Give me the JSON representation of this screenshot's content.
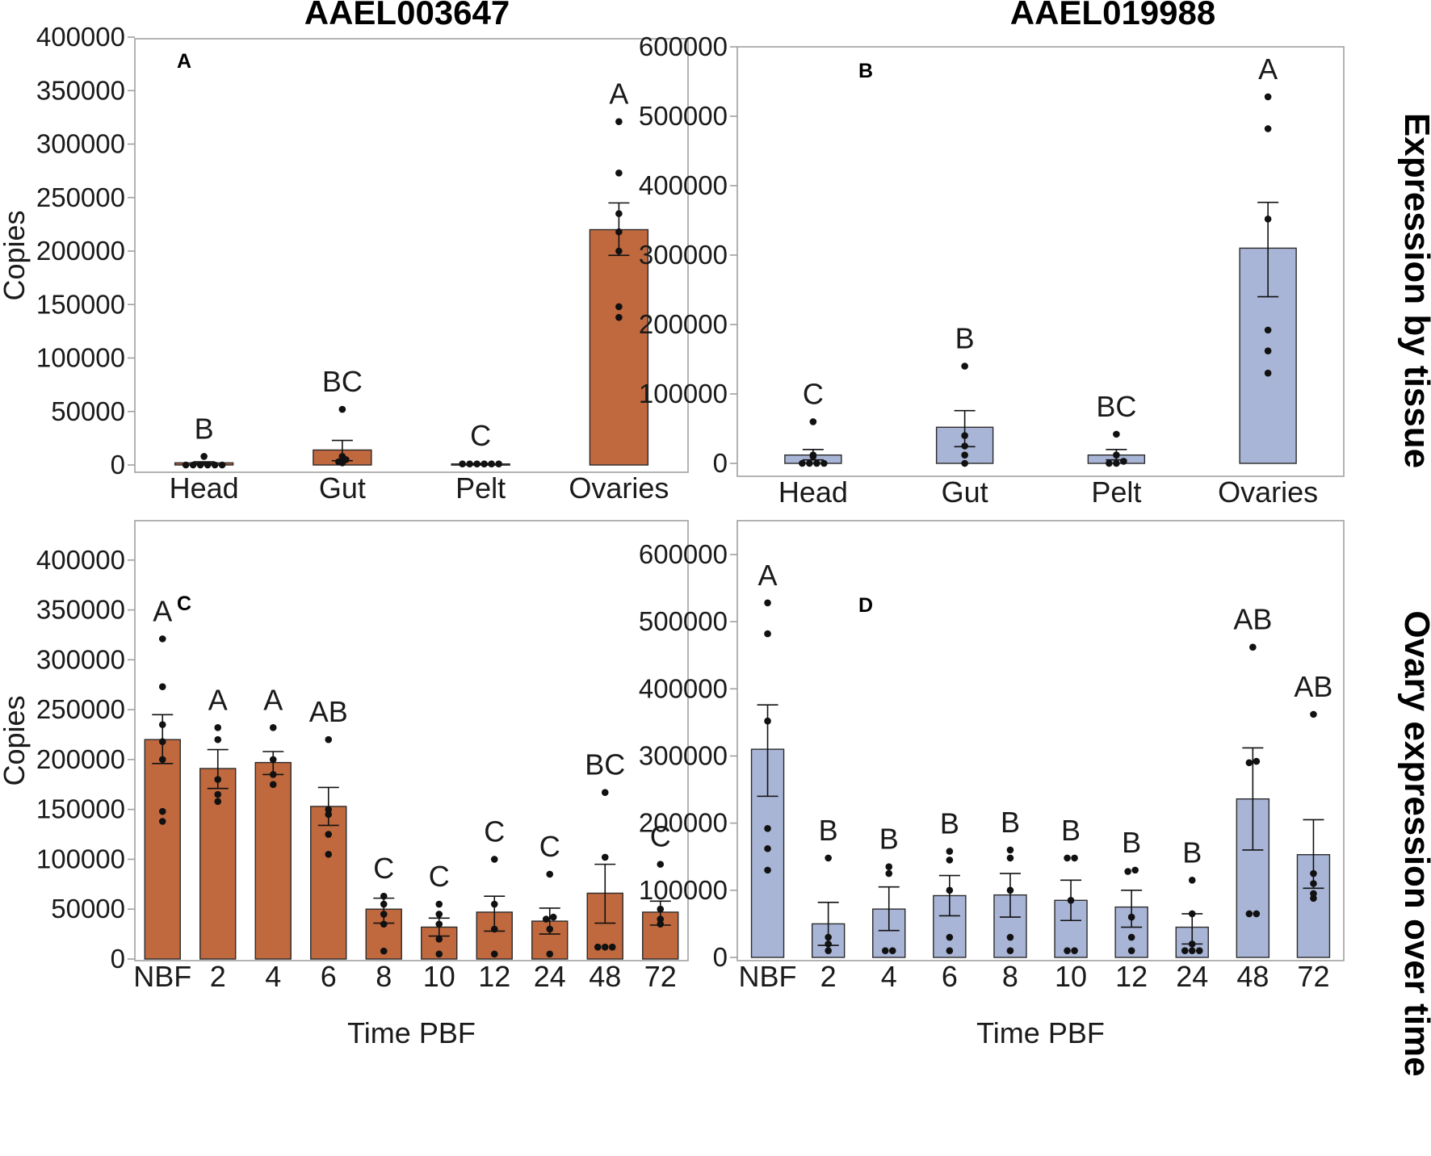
{
  "figure": {
    "column_titles": [
      "AAEL003647",
      "AAEL019988"
    ],
    "row_labels": [
      "Expression by tissue",
      "Ovary expression over time"
    ]
  },
  "colors": {
    "orange": "#c0683e",
    "blue": "#a9b5d6",
    "axis": "#a0a0a0",
    "ink": "#111111"
  },
  "chart_data": [
    {
      "id": "A",
      "panel_label": "A",
      "type": "bar",
      "color": "orange",
      "title": "AAEL003647",
      "xlabel": "",
      "ylabel": "Copies",
      "ylim": [
        0,
        400000
      ],
      "yticks": [
        0,
        50000,
        100000,
        150000,
        200000,
        250000,
        300000,
        350000,
        400000
      ],
      "categories": [
        "Head",
        "Gut",
        "Pelt",
        "Ovaries"
      ],
      "values": [
        2000,
        14000,
        1000,
        220000
      ],
      "errors": [
        [
          1000,
          3000
        ],
        [
          4000,
          23000
        ],
        [
          500,
          1500
        ],
        [
          196000,
          245000
        ]
      ],
      "letters": [
        "B",
        "BC",
        "C",
        "A"
      ],
      "points": [
        [
          0,
          0,
          0,
          0,
          0,
          0,
          8000
        ],
        [
          2000,
          3000,
          5000,
          8000,
          52000
        ],
        [
          1000,
          1000,
          1000,
          1000,
          1000,
          1000
        ],
        [
          138000,
          148000,
          200000,
          218000,
          235000,
          273000,
          321000
        ]
      ]
    },
    {
      "id": "B",
      "panel_label": "B",
      "type": "bar",
      "color": "blue",
      "title": "AAEL019988",
      "xlabel": "",
      "ylabel": "",
      "ylim": [
        0,
        600000
      ],
      "yticks": [
        0,
        100000,
        200000,
        300000,
        400000,
        500000,
        600000
      ],
      "categories": [
        "Head",
        "Gut",
        "Pelt",
        "Ovaries"
      ],
      "values": [
        12000,
        52000,
        12000,
        310000
      ],
      "errors": [
        [
          5000,
          20000
        ],
        [
          24000,
          76000
        ],
        [
          5000,
          20000
        ],
        [
          240000,
          376000
        ]
      ],
      "letters": [
        "C",
        "B",
        "BC",
        "A"
      ],
      "points": [
        [
          0,
          0,
          0,
          0,
          10000,
          12000,
          60000
        ],
        [
          0,
          12000,
          25000,
          40000,
          140000
        ],
        [
          0,
          0,
          3000,
          12000,
          42000
        ],
        [
          130000,
          162000,
          192000,
          352000,
          482000,
          528000
        ]
      ]
    },
    {
      "id": "C",
      "panel_label": "C",
      "type": "bar",
      "color": "orange",
      "title": "",
      "xlabel": "Time PBF",
      "ylabel": "Copies",
      "ylim": [
        0,
        450000
      ],
      "yticks": [
        0,
        50000,
        100000,
        150000,
        200000,
        250000,
        300000,
        350000,
        400000
      ],
      "categories": [
        "NBF",
        "2",
        "4",
        "6",
        "8",
        "10",
        "12",
        "24",
        "48",
        "72"
      ],
      "values": [
        220000,
        191000,
        197000,
        153000,
        50000,
        32000,
        47000,
        38000,
        66000,
        47000
      ],
      "errors": [
        [
          196000,
          245000
        ],
        [
          171000,
          210000
        ],
        [
          185000,
          208000
        ],
        [
          134000,
          172000
        ],
        [
          36000,
          61000
        ],
        [
          23000,
          41000
        ],
        [
          28000,
          63000
        ],
        [
          25000,
          51000
        ],
        [
          36000,
          95000
        ],
        [
          34000,
          58000
        ]
      ],
      "letters": [
        "A",
        "A",
        "A",
        "AB",
        "C",
        "C",
        "C",
        "C",
        "BC",
        "C"
      ],
      "points": [
        [
          138000,
          148000,
          200000,
          218000,
          235000,
          273000,
          321000
        ],
        [
          158000,
          165000,
          180000,
          220000,
          232000
        ],
        [
          175000,
          185000,
          200000,
          232000
        ],
        [
          105000,
          125000,
          145000,
          150000,
          220000
        ],
        [
          8000,
          35000,
          45000,
          55000,
          63000
        ],
        [
          5000,
          20000,
          35000,
          45000,
          55000
        ],
        [
          5000,
          30000,
          55000,
          100000
        ],
        [
          5000,
          30000,
          40000,
          42000,
          85000
        ],
        [
          12000,
          12000,
          12000,
          102000,
          167000
        ],
        [
          35000,
          40000,
          50000,
          95000
        ]
      ]
    },
    {
      "id": "D",
      "panel_label": "D",
      "type": "bar",
      "color": "blue",
      "title": "",
      "xlabel": "Time PBF",
      "ylabel": "",
      "ylim": [
        0,
        660000
      ],
      "yticks": [
        0,
        100000,
        200000,
        300000,
        400000,
        500000,
        600000
      ],
      "categories": [
        "NBF",
        "2",
        "4",
        "6",
        "8",
        "10",
        "12",
        "24",
        "48",
        "72"
      ],
      "values": [
        310000,
        50000,
        72000,
        92000,
        93000,
        85000,
        75000,
        45000,
        236000,
        153000
      ],
      "errors": [
        [
          240000,
          376000
        ],
        [
          18000,
          82000
        ],
        [
          40000,
          105000
        ],
        [
          62000,
          122000
        ],
        [
          60000,
          125000
        ],
        [
          55000,
          115000
        ],
        [
          45000,
          100000
        ],
        [
          20000,
          65000
        ],
        [
          160000,
          312000
        ],
        [
          103000,
          205000
        ]
      ],
      "letters": [
        "A",
        "B",
        "B",
        "B",
        "B",
        "B",
        "B",
        "B",
        "AB",
        "AB"
      ],
      "points": [
        [
          130000,
          162000,
          192000,
          352000,
          482000,
          528000
        ],
        [
          10000,
          20000,
          30000,
          148000
        ],
        [
          10000,
          10000,
          125000,
          135000
        ],
        [
          10000,
          30000,
          100000,
          145000,
          158000
        ],
        [
          10000,
          30000,
          100000,
          148000,
          160000
        ],
        [
          10000,
          10000,
          85000,
          148000,
          148000
        ],
        [
          10000,
          30000,
          60000,
          128000,
          130000
        ],
        [
          10000,
          10000,
          10000,
          20000,
          65000,
          115000
        ],
        [
          65000,
          65000,
          290000,
          292000,
          462000
        ],
        [
          88000,
          95000,
          110000,
          125000,
          362000
        ]
      ]
    }
  ]
}
